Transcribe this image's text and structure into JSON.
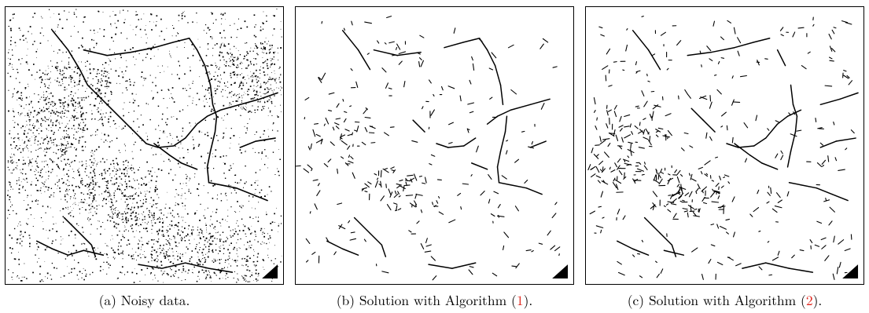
{
  "figure": {
    "panels": [
      {
        "label": "(a)",
        "text": "Noisy data.",
        "ref": "",
        "suffix": ""
      },
      {
        "label": "(b)",
        "text": "Solution with Algorithm (",
        "ref": "1",
        "suffix": ")."
      },
      {
        "label": "(c)",
        "text": "Solution with Algorithm (",
        "ref": "2",
        "suffix": ")."
      }
    ]
  },
  "colors": {
    "ink": "#000000",
    "reference": "#e0261d",
    "background": "#ffffff"
  }
}
